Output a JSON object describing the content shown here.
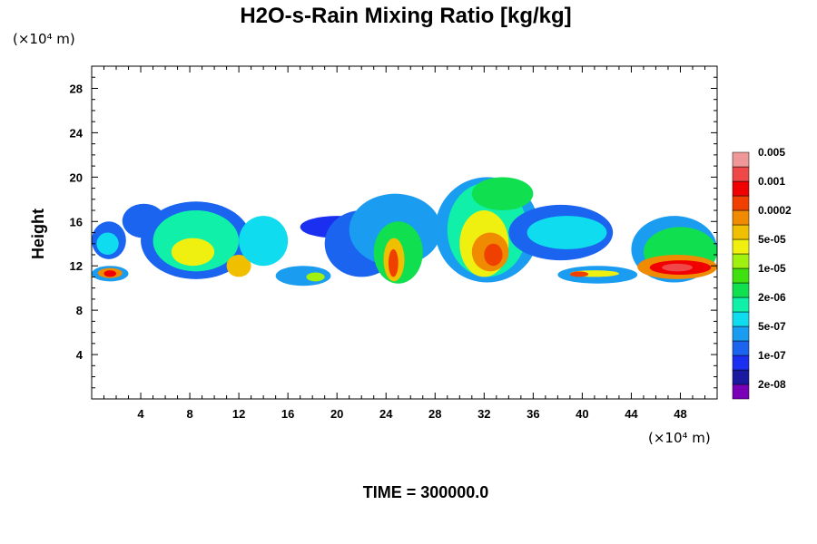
{
  "chart_data": {
    "type": "heatmap",
    "title": "H2O-s-Rain Mixing Ratio [kg/kg]",
    "xlabel": "",
    "ylabel": "Height",
    "x_unit": "(×10⁴ m)",
    "y_unit": "(×10⁴ m)",
    "xlim": [
      0,
      51
    ],
    "ylim": [
      0,
      30
    ],
    "x_ticks": [
      4,
      8,
      12,
      16,
      20,
      24,
      28,
      32,
      36,
      40,
      44,
      48
    ],
    "y_ticks": [
      4,
      8,
      12,
      16,
      20,
      24,
      28
    ],
    "footer": "TIME = 300000.0",
    "colorbar": {
      "colors": [
        "#7a00b8",
        "#1a1aa0",
        "#1a2ff0",
        "#1a64f0",
        "#1a9cf0",
        "#10dcf0",
        "#10f0a8",
        "#10e050",
        "#40e010",
        "#a0f010",
        "#f0f010",
        "#f0c000",
        "#f08a00",
        "#f04000",
        "#f00000",
        "#f04848",
        "#f09898"
      ],
      "labels": [
        "2e-08",
        "1e-07",
        "5e-07",
        "2e-06",
        "1e-05",
        "5e-05",
        "0.0002",
        "0.001",
        "0.005"
      ]
    },
    "fields": [
      {
        "x": [
          0.0,
          2.8
        ],
        "y": [
          12.6,
          16.0
        ],
        "level": 3
      },
      {
        "x": [
          0.4,
          2.2
        ],
        "y": [
          13.0,
          15.0
        ],
        "level": 5
      },
      {
        "x": [
          0.0,
          3.0
        ],
        "y": [
          10.6,
          12.0
        ],
        "level": 4
      },
      {
        "x": [
          0.5,
          2.5
        ],
        "y": [
          10.9,
          11.8
        ],
        "level": 12
      },
      {
        "x": [
          1.0,
          2.0
        ],
        "y": [
          11.0,
          11.6
        ],
        "level": 14
      },
      {
        "x": [
          2.5,
          6.0
        ],
        "y": [
          14.5,
          17.6
        ],
        "level": 3
      },
      {
        "x": [
          4.0,
          13.0
        ],
        "y": [
          10.8,
          17.8
        ],
        "level": 3
      },
      {
        "x": [
          5.0,
          12.0
        ],
        "y": [
          11.5,
          17.0
        ],
        "level": 6
      },
      {
        "x": [
          6.5,
          10.0
        ],
        "y": [
          12.0,
          14.5
        ],
        "level": 10
      },
      {
        "x": [
          11.0,
          13.0
        ],
        "y": [
          11.0,
          13.0
        ],
        "level": 11
      },
      {
        "x": [
          12.0,
          16.0
        ],
        "y": [
          12.0,
          16.5
        ],
        "level": 5
      },
      {
        "x": [
          15.0,
          19.5
        ],
        "y": [
          10.2,
          12.0
        ],
        "level": 4
      },
      {
        "x": [
          17.5,
          19.0
        ],
        "y": [
          10.6,
          11.4
        ],
        "level": 9
      },
      {
        "x": [
          17.0,
          23.0
        ],
        "y": [
          14.5,
          16.5
        ],
        "level": 2
      },
      {
        "x": [
          19.0,
          25.0
        ],
        "y": [
          11.0,
          17.0
        ],
        "level": 3
      },
      {
        "x": [
          21.0,
          28.5
        ],
        "y": [
          12.0,
          18.5
        ],
        "level": 4
      },
      {
        "x": [
          23.0,
          27.0
        ],
        "y": [
          10.4,
          16.0
        ],
        "level": 7
      },
      {
        "x": [
          23.8,
          25.5
        ],
        "y": [
          10.6,
          14.5
        ],
        "level": 11
      },
      {
        "x": [
          24.2,
          25.0
        ],
        "y": [
          11.0,
          13.5
        ],
        "level": 13
      },
      {
        "x": [
          28.0,
          36.5
        ],
        "y": [
          10.5,
          20.0
        ],
        "level": 4
      },
      {
        "x": [
          29.0,
          35.5
        ],
        "y": [
          11.0,
          19.5
        ],
        "level": 6
      },
      {
        "x": [
          30.0,
          34.0
        ],
        "y": [
          11.0,
          17.0
        ],
        "level": 10
      },
      {
        "x": [
          31.0,
          34.0
        ],
        "y": [
          11.5,
          15.0
        ],
        "level": 12
      },
      {
        "x": [
          32.0,
          33.5
        ],
        "y": [
          12.0,
          14.0
        ],
        "level": 13
      },
      {
        "x": [
          31.0,
          36.0
        ],
        "y": [
          17.0,
          20.0
        ],
        "level": 7
      },
      {
        "x": [
          34.0,
          42.5
        ],
        "y": [
          12.5,
          17.5
        ],
        "level": 3
      },
      {
        "x": [
          35.5,
          42.0
        ],
        "y": [
          13.5,
          16.5
        ],
        "level": 5
      },
      {
        "x": [
          38.0,
          44.5
        ],
        "y": [
          10.4,
          12.0
        ],
        "level": 4
      },
      {
        "x": [
          39.0,
          43.0
        ],
        "y": [
          11.0,
          11.6
        ],
        "level": 10
      },
      {
        "x": [
          39.0,
          40.5
        ],
        "y": [
          11.0,
          11.5
        ],
        "level": 13
      },
      {
        "x": [
          44.0,
          51.0
        ],
        "y": [
          10.5,
          16.5
        ],
        "level": 4
      },
      {
        "x": [
          45.0,
          51.0
        ],
        "y": [
          11.0,
          15.5
        ],
        "level": 7
      },
      {
        "x": [
          44.5,
          51.0
        ],
        "y": [
          10.8,
          13.0
        ],
        "level": 12
      },
      {
        "x": [
          45.5,
          50.5
        ],
        "y": [
          11.2,
          12.5
        ],
        "level": 14
      },
      {
        "x": [
          46.5,
          49.0
        ],
        "y": [
          11.5,
          12.2
        ],
        "level": 15
      }
    ]
  }
}
